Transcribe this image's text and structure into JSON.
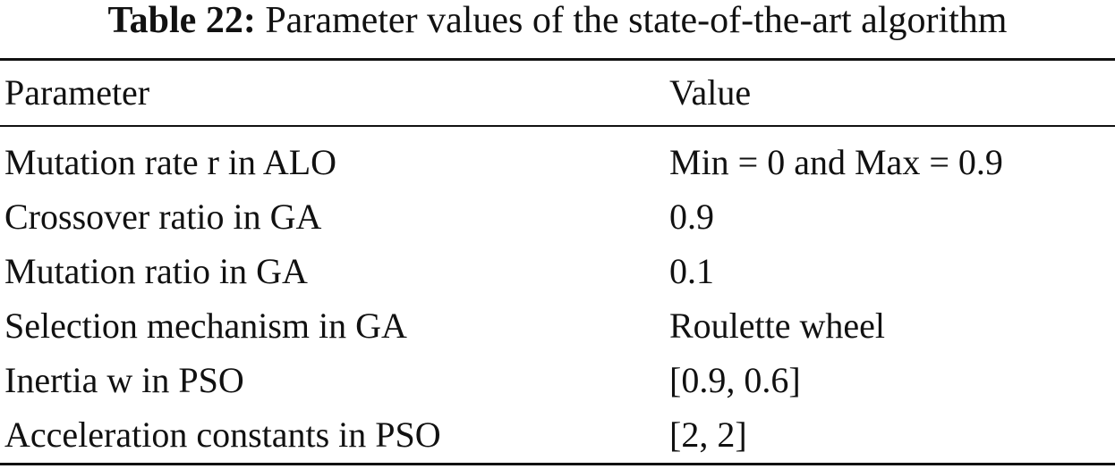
{
  "caption": {
    "label": "Table 22:",
    "text": "Parameter values of the state-of-the-art algorithm"
  },
  "table": {
    "headers": {
      "parameter": "Parameter",
      "value": "Value"
    },
    "rows": [
      {
        "parameter": "Mutation rate r in ALO",
        "value": "Min = 0 and Max = 0.9"
      },
      {
        "parameter": "Crossover ratio in GA",
        "value": "0.9"
      },
      {
        "parameter": "Mutation ratio in GA",
        "value": "0.1"
      },
      {
        "parameter": "Selection mechanism in GA",
        "value": "Roulette wheel"
      },
      {
        "parameter": "Inertia w in PSO",
        "value": "[0.9, 0.6]"
      },
      {
        "parameter": "Acceleration constants in PSO",
        "value": "[2, 2]"
      }
    ]
  }
}
